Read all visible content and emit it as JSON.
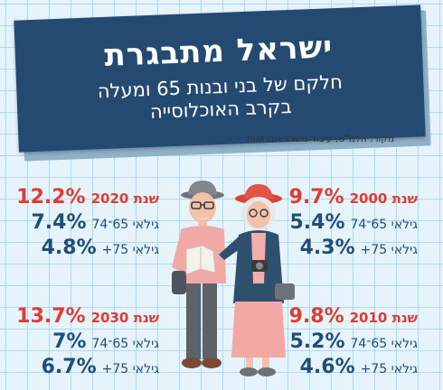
{
  "header": {
    "title": "ישראל מתבגרת",
    "subtitle_line1": "חלקם של בני ובנות 65 ומעלה",
    "subtitle_line2": "בקרב האוכלוסייה"
  },
  "source": "מקור: הלמ\"ס, עיבוד משרד הבריאות",
  "blocks": [
    {
      "year_label": "שנת 2000",
      "total": "9.7%",
      "row1_label": "גילאי 65־74",
      "row1_value": "5.4%",
      "row2_label": "גילאי 75+",
      "row2_value": "4.3%"
    },
    {
      "year_label": "שנת 2020",
      "total": "12.2%",
      "row1_label": "גילאי 65־74",
      "row1_value": "7.4%",
      "row2_label": "גילאי 75+",
      "row2_value": "4.8%"
    },
    {
      "year_label": "שנת 2010",
      "total": "9.8%",
      "row1_label": "גילאי 65־74",
      "row1_value": "5.2%",
      "row2_label": "גילאי 75+",
      "row2_value": "4.6%"
    },
    {
      "year_label": "שנת 2030",
      "total": "13.7%",
      "row1_label": "גילאי 65־74",
      "row1_value": "7%",
      "row2_label": "גילאי 75+",
      "row2_value": "6.7%"
    }
  ],
  "colors": {
    "banner": "#244a72",
    "accent_red": "#e23b31",
    "text_blue": "#1f4e7a",
    "background": "#e6f3fb"
  },
  "icons": [
    "elderly-man-illustration",
    "elderly-woman-illustration",
    "map-icon",
    "camera-icon"
  ]
}
